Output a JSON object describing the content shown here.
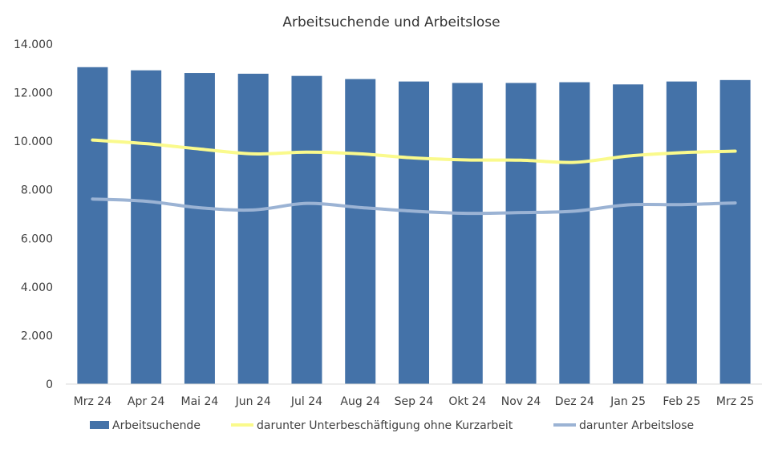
{
  "chart_data": {
    "type": "bar",
    "title": "Arbeitsuchende und Arbeitslose",
    "xlabel": "",
    "ylabel": "",
    "ylim": [
      0,
      14000
    ],
    "yticks": [
      0,
      2000,
      4000,
      6000,
      8000,
      10000,
      12000,
      14000
    ],
    "ytick_labels": [
      "0",
      "2.000",
      "4.000",
      "6.000",
      "8.000",
      "10.000",
      "12.000",
      "14.000"
    ],
    "grid": false,
    "legend_position": "bottom",
    "categories": [
      "Mrz 24",
      "Apr 24",
      "Mai 24",
      "Jun 24",
      "Jul 24",
      "Aug 24",
      "Sep 24",
      "Okt 24",
      "Nov 24",
      "Dez 24",
      "Jan 25",
      "Feb 25",
      "Mrz 25"
    ],
    "series": [
      {
        "name": "Arbeitsuchende",
        "type": "bar",
        "color": "#4472a8",
        "values": [
          13050,
          12920,
          12810,
          12780,
          12690,
          12560,
          12460,
          12400,
          12400,
          12430,
          12340,
          12460,
          12520
        ]
      },
      {
        "name": "darunter Unterbeschäftigung ohne Kurzarbeit",
        "type": "line",
        "color": "#fafa8c",
        "values": [
          10050,
          9900,
          9680,
          9480,
          9550,
          9480,
          9310,
          9230,
          9220,
          9130,
          9390,
          9530,
          9590
        ]
      },
      {
        "name": "darunter Arbeitslose",
        "type": "line",
        "color": "#9bb3d4",
        "values": [
          7620,
          7530,
          7260,
          7170,
          7440,
          7270,
          7120,
          7030,
          7060,
          7120,
          7380,
          7390,
          7460
        ]
      }
    ]
  }
}
